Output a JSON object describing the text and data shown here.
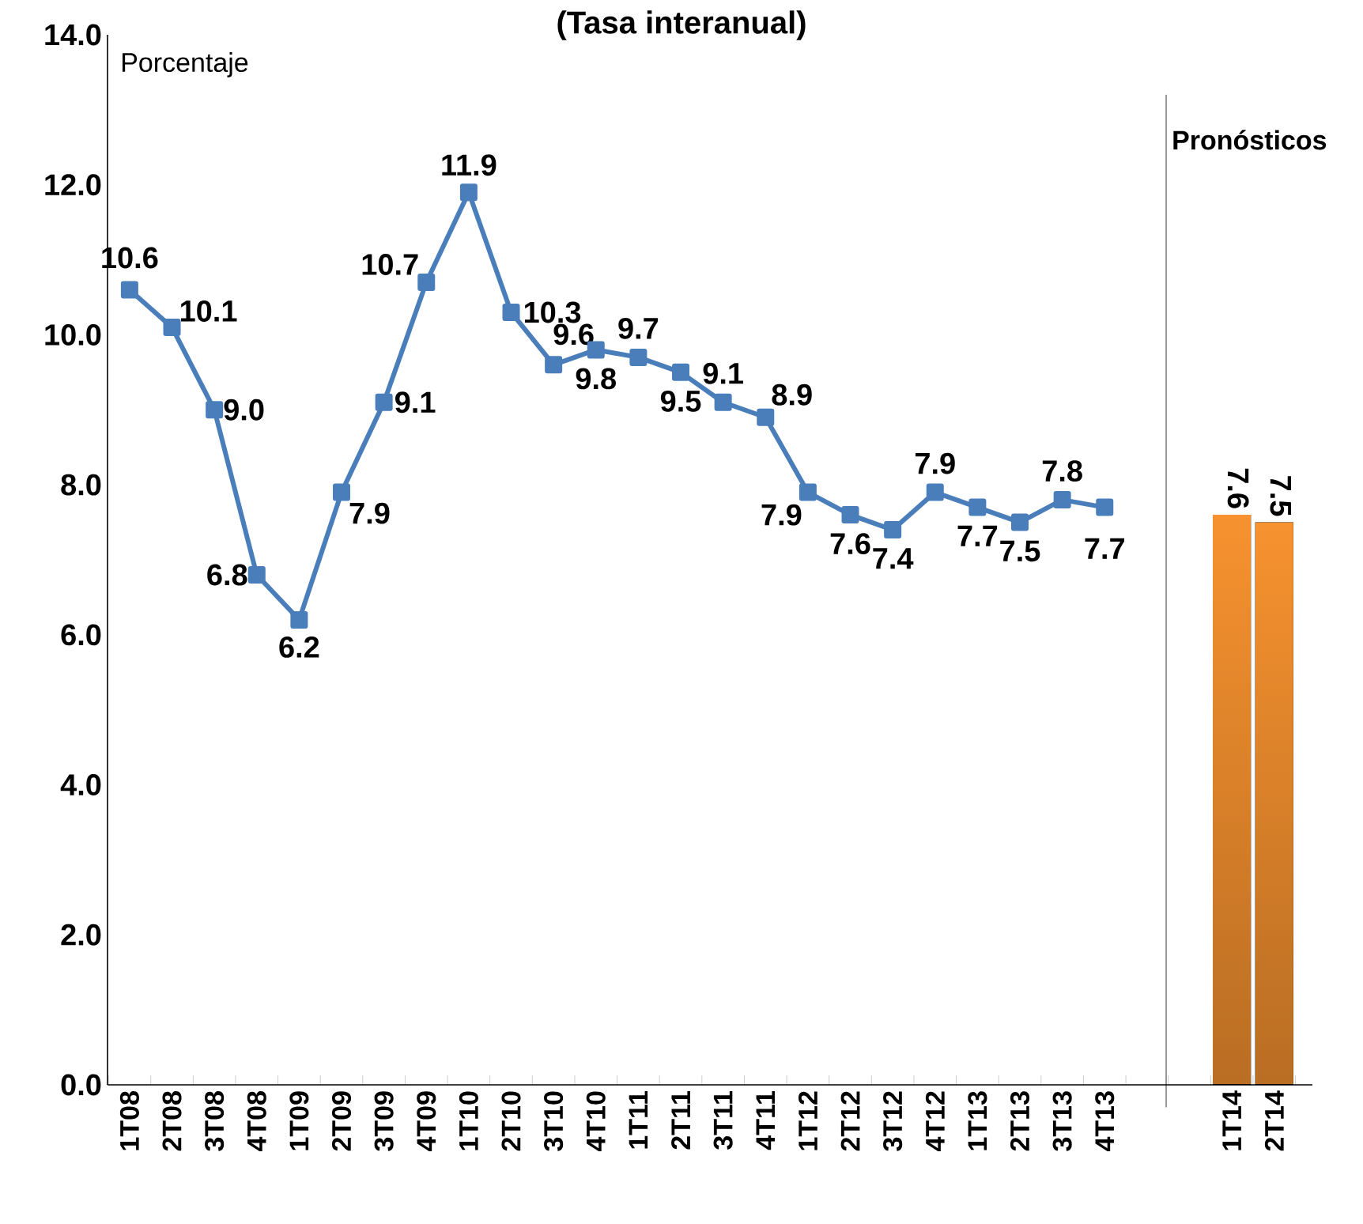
{
  "chart_data": {
    "type": "line",
    "title": "(Tasa interanual)",
    "ylabel": "Porcentaje",
    "categories": [
      "1T08",
      "2T08",
      "3T08",
      "4T08",
      "1T09",
      "2T09",
      "3T09",
      "4T09",
      "1T10",
      "2T10",
      "3T10",
      "4T10",
      "1T11",
      "2T11",
      "3T11",
      "4T11",
      "1T12",
      "2T12",
      "3T12",
      "4T12",
      "1T13",
      "2T13",
      "3T13",
      "4T13",
      null,
      null,
      "1T14",
      "2T14"
    ],
    "series": [
      {
        "color": "#4a7ebb",
        "marker": "square",
        "values": [
          10.6,
          10.1,
          9.0,
          6.8,
          6.2,
          7.9,
          9.1,
          10.7,
          11.9,
          10.3,
          9.6,
          9.8,
          9.7,
          9.5,
          9.1,
          8.9,
          7.9,
          7.6,
          7.4,
          7.9,
          7.7,
          7.5,
          7.8,
          7.7,
          null,
          null,
          null,
          null
        ],
        "value_labels": [
          "10.6",
          "10.1",
          "9.0",
          "6.8",
          "6.2",
          "7.9",
          "9.1",
          "10.7",
          "11.9",
          "10.3",
          "9.6",
          "9.8",
          "9.7",
          "9.5",
          "9.1",
          "8.9",
          "7.9",
          "7.6",
          "7.4",
          "7.9",
          "7.7",
          "7.5",
          "7.8",
          "7.7",
          null,
          null,
          null,
          null
        ]
      },
      {
        "type": "bar",
        "color": "#f7922f",
        "values": [
          null,
          null,
          null,
          null,
          null,
          null,
          null,
          null,
          null,
          null,
          null,
          null,
          null,
          null,
          null,
          null,
          null,
          null,
          null,
          null,
          null,
          null,
          null,
          null,
          null,
          null,
          7.6,
          7.5
        ],
        "value_labels": [
          null,
          null,
          null,
          null,
          null,
          null,
          null,
          null,
          null,
          null,
          null,
          null,
          null,
          null,
          null,
          null,
          null,
          null,
          null,
          null,
          null,
          null,
          null,
          null,
          null,
          null,
          "7.6",
          "7.5"
        ]
      }
    ],
    "ylim": [
      0,
      14
    ],
    "yticks": [
      {
        "value": 0,
        "label": "0.0"
      },
      {
        "value": 2,
        "label": "2.0"
      },
      {
        "value": 4,
        "label": "4.0"
      },
      {
        "value": 6,
        "label": "6.0"
      },
      {
        "value": 8,
        "label": "8.0"
      },
      {
        "value": 10,
        "label": "10.0"
      },
      {
        "value": 12,
        "label": "12.0"
      },
      {
        "value": 14,
        "label": "14.0"
      }
    ],
    "annotations": [
      "Pronósticos"
    ]
  }
}
